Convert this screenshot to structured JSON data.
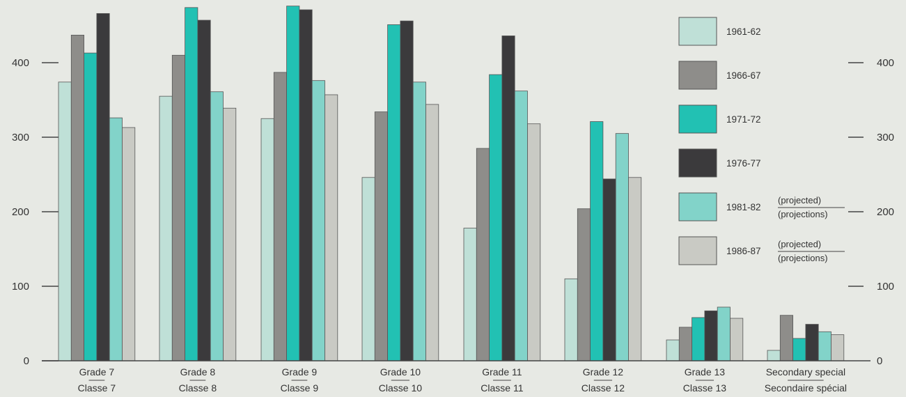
{
  "chart_data": {
    "type": "bar",
    "categories": [
      {
        "line1": "Grade 7",
        "line2": "Classe 7"
      },
      {
        "line1": "Grade 8",
        "line2": "Classe 8"
      },
      {
        "line1": "Grade 9",
        "line2": "Classe 9"
      },
      {
        "line1": "Grade 10",
        "line2": "Classe 10"
      },
      {
        "line1": "Grade 11",
        "line2": "Classe 11"
      },
      {
        "line1": "Grade 12",
        "line2": "Classe 12"
      },
      {
        "line1": "Grade 13",
        "line2": "Classe 13"
      },
      {
        "line1": "Secondary special",
        "line2": "Secondaire spécial"
      }
    ],
    "series": [
      {
        "name": "1961-62",
        "color": "#bfe0d7",
        "values": [
          374,
          355,
          325,
          246,
          178,
          110,
          28,
          14
        ]
      },
      {
        "name": "1966-67",
        "color": "#8e8d8a",
        "values": [
          437,
          410,
          387,
          334,
          285,
          204,
          45,
          61
        ]
      },
      {
        "name": "1971-72",
        "color": "#22c1b3",
        "values": [
          413,
          474,
          476,
          451,
          384,
          321,
          58,
          30
        ]
      },
      {
        "name": "1976-77",
        "color": "#3b3a3c",
        "values": [
          466,
          457,
          471,
          456,
          436,
          244,
          67,
          49
        ]
      },
      {
        "name": "1981-82",
        "note_top": "(projected)",
        "note_bottom": "(projections)",
        "color": "#82d3c9",
        "values": [
          326,
          361,
          376,
          374,
          362,
          305,
          72,
          39
        ]
      },
      {
        "name": "1986-87",
        "note_top": "(projected)",
        "note_bottom": "(projections)",
        "color": "#c9cac4",
        "values": [
          313,
          339,
          357,
          344,
          318,
          246,
          57,
          35
        ]
      }
    ],
    "yticks": [
      0,
      100,
      200,
      300,
      400
    ],
    "ylim": [
      0,
      490
    ],
    "xlabel": "",
    "ylabel": "",
    "grid": false,
    "legend_position": "top-right"
  }
}
